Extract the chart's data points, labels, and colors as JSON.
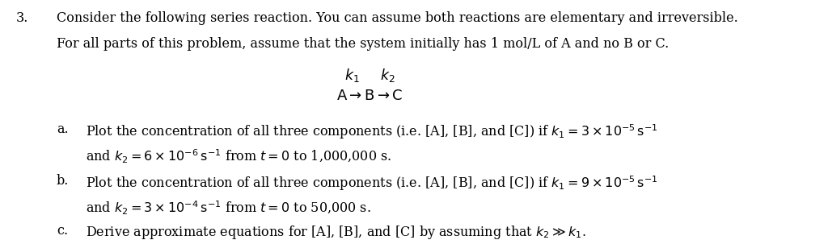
{
  "background_color": "#ffffff",
  "number": "3.",
  "line1": "Consider the following series reaction. You can assume both reactions are elementary and irreversible.",
  "line2": "For all parts of this problem, assume that the system initially has 1 mol/L of A and no B or C.",
  "reaction_label": "$\\dfrac{k_1 \\quad k_2}{\\mathrm{A} \\rightarrow \\mathrm{B} \\rightarrow \\mathrm{C}}$",
  "items": [
    {
      "label": "a.",
      "line1": "Plot the concentration of all three components (i.e. [A], [B], and [C]) if $k_1 = 3 \\times 10^{-5}\\, \\mathrm{s}^{-1}$",
      "line2": "and $k_2 = 6 \\times 10^{-6}\\, \\mathrm{s}^{-1}$ from $t = 0$ to 1,000,000 s."
    },
    {
      "label": "b.",
      "line1": "Plot the concentration of all three components (i.e. [A], [B], and [C]) if $k_1 = 9 \\times 10^{-5}\\, \\mathrm{s}^{-1}$",
      "line2": "and $k_2 = 3 \\times 10^{-4}\\, \\mathrm{s}^{-1}$ from $t = 0$ to 50,000 s."
    },
    {
      "label": "c.",
      "line1": "Derive approximate equations for [A], [B], and [C] by assuming that $k_2 \\gg k_1$.",
      "line2": null
    }
  ],
  "text_color": "#000000",
  "font_size_main": 11.5,
  "font_size_reaction": 13
}
